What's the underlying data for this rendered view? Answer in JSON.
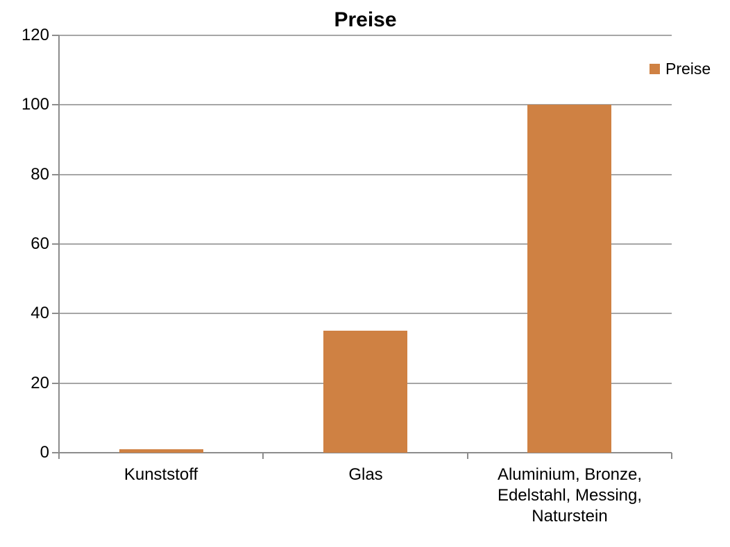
{
  "chart_data": {
    "type": "bar",
    "title": "Preise",
    "categories": [
      "Kunststoff",
      "Glas",
      "Aluminium, Bronze, Edelstahl, Messing, Naturstein"
    ],
    "series": [
      {
        "name": "Preise",
        "values": [
          1,
          35,
          100
        ]
      }
    ],
    "xlabel": "",
    "ylabel": "",
    "ylim": [
      0,
      120
    ],
    "yticks": [
      0,
      20,
      40,
      60,
      80,
      100,
      120
    ],
    "grid": true,
    "legend_position": "top-right",
    "colors": {
      "bar": "#CF8143",
      "gridline": "#A6A6A6",
      "axis": "#8C8C8C",
      "text": "#000000",
      "background": "#FFFFFF"
    }
  }
}
